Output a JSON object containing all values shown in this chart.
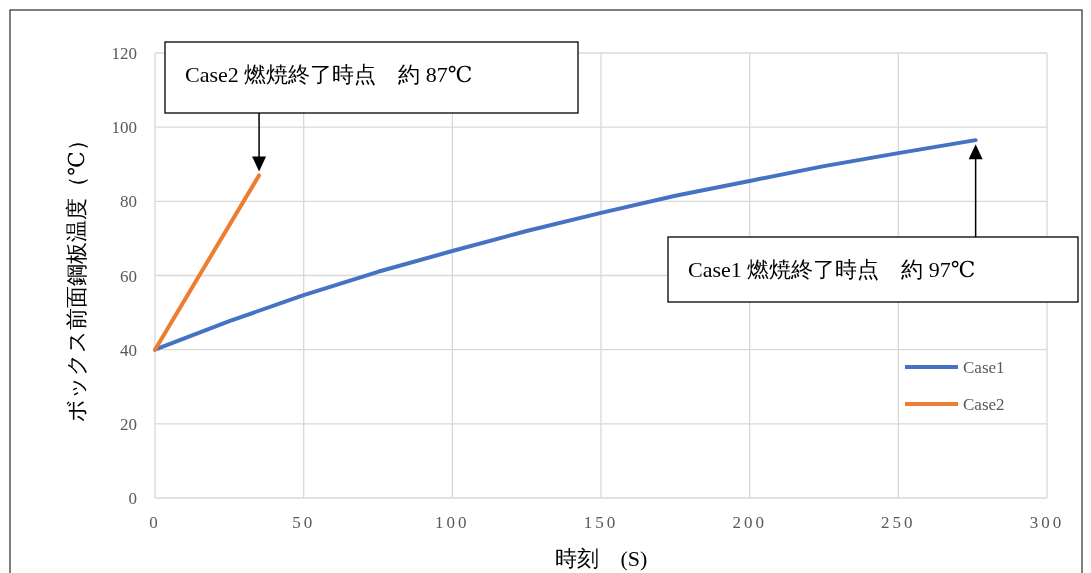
{
  "chart_data": {
    "type": "line",
    "xlabel": "時刻　(S)",
    "ylabel": "ボックス前面鋼板温度（℃）",
    "xlim": [
      0,
      300
    ],
    "ylim": [
      0,
      120
    ],
    "xticks": [
      0,
      50,
      100,
      150,
      200,
      250,
      300
    ],
    "yticks": [
      0,
      20,
      40,
      60,
      80,
      100,
      120
    ],
    "grid": true,
    "legend": "right",
    "marker": "none",
    "line_style": "solid",
    "series": [
      {
        "name": "Case1",
        "color": "#4472c4",
        "x": [
          0,
          25,
          50,
          75,
          100,
          125,
          150,
          175,
          200,
          225,
          250,
          276
        ],
        "values": [
          40,
          47.7,
          54.7,
          61,
          66.6,
          72,
          76.9,
          81.5,
          85.5,
          89.5,
          93,
          96.5
        ]
      },
      {
        "name": "Case2",
        "color": "#ed7d31",
        "x": [
          0,
          35
        ],
        "values": [
          40,
          87
        ]
      }
    ],
    "annotations": [
      "Case2 燃焼終了時点　約 87℃",
      "Case1 燃焼終了時点　約 97℃"
    ]
  }
}
